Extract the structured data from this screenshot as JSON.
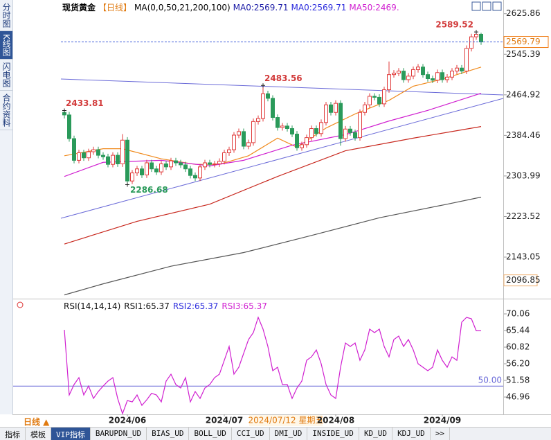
{
  "sidebar_tabs": [
    "分时图",
    "K线图",
    "闪电图",
    "合约资料"
  ],
  "header": {
    "instrument": "现货黄金",
    "period": "【日线】",
    "indicator": "MA(0,0,50,21,200,100)",
    "legend": [
      {
        "text": "MA0:2569.71",
        "color": "#1a1aa6"
      },
      {
        "text": "MA0:2569.71",
        "color": "#2b2bdd"
      },
      {
        "text": "MA50:2469.",
        "color": "#d01fd0"
      }
    ]
  },
  "chart_data": [
    {
      "type": "candlestick",
      "open": [
        2430,
        2425,
        2378,
        2335,
        2350,
        2340,
        2352,
        2356,
        2345,
        2342,
        2327,
        2345,
        2328,
        2375,
        2294,
        2310,
        2318,
        2306,
        2330,
        2318,
        2312,
        2328,
        2322,
        2334,
        2330,
        2326,
        2318,
        2305,
        2300,
        2322,
        2330,
        2327,
        2328,
        2333,
        2350,
        2356,
        2385,
        2392,
        2363,
        2370,
        2412,
        2418,
        2467,
        2458,
        2420,
        2400,
        2403,
        2398,
        2387,
        2360,
        2366,
        2380,
        2398,
        2388,
        2410,
        2445,
        2430,
        2448,
        2378,
        2397,
        2390,
        2380,
        2430,
        2445,
        2462,
        2460,
        2447,
        2475,
        2505,
        2508,
        2512,
        2495,
        2502,
        2515,
        2520,
        2505,
        2497,
        2494,
        2509,
        2495,
        2500,
        2512,
        2518,
        2512,
        2557,
        2580,
        2585
      ],
      "high": [
        2433.81,
        2431,
        2384,
        2356,
        2356,
        2358,
        2362,
        2362,
        2351,
        2348,
        2351,
        2351,
        2387,
        2381,
        2316,
        2324,
        2324,
        2336,
        2336,
        2324,
        2334,
        2334,
        2340,
        2340,
        2336,
        2332,
        2324,
        2311,
        2328,
        2336,
        2336,
        2334,
        2339,
        2356,
        2362,
        2391,
        2398,
        2398,
        2376,
        2418,
        2424,
        2483.56,
        2473,
        2464,
        2426,
        2409,
        2409,
        2404,
        2393,
        2372,
        2386,
        2404,
        2404,
        2416,
        2451,
        2451,
        2454,
        2454,
        2403,
        2403,
        2396,
        2436,
        2451,
        2468,
        2468,
        2466,
        2481,
        2531,
        2514,
        2518,
        2518,
        2508,
        2521,
        2526,
        2526,
        2511,
        2503,
        2515,
        2515,
        2506,
        2518,
        2524,
        2524,
        2563,
        2586,
        2589.52,
        2588
      ],
      "low": [
        2418,
        2372,
        2329,
        2329,
        2334,
        2334,
        2346,
        2339,
        2336,
        2321,
        2321,
        2322,
        2322,
        2286.68,
        2288,
        2304,
        2300,
        2300,
        2312,
        2306,
        2306,
        2316,
        2316,
        2324,
        2320,
        2312,
        2299,
        2294,
        2294,
        2316,
        2321,
        2321,
        2322,
        2327,
        2344,
        2350,
        2379,
        2357,
        2357,
        2364,
        2406,
        2412,
        2452,
        2414,
        2394,
        2394,
        2392,
        2381,
        2354,
        2354,
        2360,
        2374,
        2382,
        2382,
        2404,
        2424,
        2424,
        2364,
        2372,
        2384,
        2374,
        2374,
        2424,
        2439,
        2454,
        2441,
        2441,
        2469,
        2499,
        2502,
        2489,
        2489,
        2496,
        2509,
        2499,
        2491,
        2488,
        2488,
        2489,
        2489,
        2494,
        2506,
        2506,
        2506,
        2551,
        2574,
        2564
      ],
      "close": [
        2425,
        2378,
        2335,
        2350,
        2340,
        2352,
        2356,
        2345,
        2342,
        2327,
        2345,
        2328,
        2375,
        2294,
        2310,
        2318,
        2306,
        2330,
        2318,
        2312,
        2328,
        2322,
        2334,
        2330,
        2326,
        2318,
        2305,
        2300,
        2322,
        2330,
        2327,
        2328,
        2333,
        2350,
        2356,
        2385,
        2392,
        2363,
        2370,
        2412,
        2418,
        2467,
        2458,
        2420,
        2400,
        2403,
        2398,
        2387,
        2360,
        2366,
        2380,
        2398,
        2388,
        2410,
        2445,
        2430,
        2448,
        2378,
        2397,
        2390,
        2380,
        2430,
        2445,
        2462,
        2460,
        2447,
        2475,
        2505,
        2508,
        2512,
        2495,
        2502,
        2515,
        2520,
        2505,
        2497,
        2494,
        2509,
        2495,
        2500,
        2512,
        2518,
        2512,
        2557,
        2580,
        2585,
        2569.79
      ],
      "up_color": "#e03a3a",
      "down_color": "#2a9a5a",
      "lines": [
        {
          "color": "#f08a1c",
          "x": [
            0,
            8,
            12,
            20,
            27,
            32,
            38,
            44,
            48,
            54,
            60,
            67,
            72,
            78,
            86
          ],
          "values": [
            2344,
            2358,
            2358,
            2338,
            2327,
            2327,
            2344,
            2379,
            2361,
            2399,
            2427,
            2454,
            2482,
            2496,
            2520
          ]
        },
        {
          "color": "#d01fd0",
          "x": [
            0,
            8,
            20,
            30,
            37,
            47,
            58,
            67,
            75,
            86
          ],
          "values": [
            2303,
            2331,
            2335,
            2324,
            2335,
            2365,
            2386,
            2413,
            2434,
            2468
          ]
        },
        {
          "color": "#c8281e",
          "x": [
            0,
            15,
            30,
            44,
            58,
            72,
            86
          ],
          "values": [
            2169,
            2214,
            2248,
            2303,
            2354,
            2379,
            2402
          ]
        },
        {
          "color": "#555555",
          "x": [
            0,
            8,
            22,
            37,
            51,
            65,
            79,
            86
          ],
          "values": [
            2068,
            2090,
            2125,
            2152,
            2186,
            2221,
            2248,
            2262
          ]
        }
      ],
      "annotations": [
        {
          "value": 2433.81,
          "x": 0
        },
        {
          "value": 2286.68,
          "x": 13
        },
        {
          "value": 2483.56,
          "x": 41
        },
        {
          "value": 2589.52,
          "x": 85
        }
      ],
      "last_price": 2569.79,
      "range_low": 2096.85,
      "ylim": [
        2062,
        2642
      ],
      "yticks": [
        2625.86,
        2545.39,
        2464.92,
        2384.46,
        2303.99,
        2223.52,
        2143.05
      ],
      "xticks": [
        {
          "value": 13,
          "label": "2024/06"
        },
        {
          "value": 33,
          "label": "2024/07"
        },
        {
          "value": 56,
          "label": "2024/08"
        },
        {
          "value": 78,
          "label": "2024/09"
        }
      ]
    },
    {
      "type": "line",
      "legend": [
        {
          "text": "RSI(14,14,14)",
          "color": "#111111"
        },
        {
          "text": "RSI1:65.37",
          "color": "#111111"
        },
        {
          "text": "RSI2:65.37",
          "color": "#2b2bdd"
        },
        {
          "text": "RSI3:65.37",
          "color": "#d01fd0"
        }
      ],
      "series": [
        {
          "color": "#d01fd0",
          "values": [
            65.63,
            47.54,
            50.43,
            52.35,
            47.54,
            50.04,
            46.57,
            48.5,
            50.0,
            51.39,
            52.35,
            46.57,
            42.34,
            46.0,
            45.61,
            47.54,
            44.65,
            46.2,
            48.0,
            47.54,
            45.61,
            51.39,
            53.31,
            50.43,
            49.46,
            52.35,
            45.61,
            48.5,
            46.57,
            49.46,
            50.43,
            52.35,
            53.31,
            57.16,
            61.01,
            53.31,
            55.24,
            59.09,
            62.94,
            64.86,
            69.1,
            65.83,
            61.01,
            54.28,
            55.24,
            50.43,
            50.43,
            46.57,
            49.46,
            51.39,
            57.16,
            58.13,
            60.05,
            56.2,
            50.43,
            47.54,
            46.57,
            55.24,
            61.98,
            61.01,
            61.98,
            57.16,
            60.05,
            65.83,
            64.86,
            65.83,
            61.01,
            58.13,
            62.94,
            63.9,
            61.01,
            62.94,
            60.05,
            56.2,
            55.24,
            54.28,
            55.24,
            60.05,
            57.16,
            55.24,
            58.13,
            57.16,
            67.75,
            69.1,
            68.71,
            65.37,
            65.37
          ]
        }
      ],
      "reference": {
        "value": 50,
        "label": "50.00",
        "color": "#6a6ad8"
      },
      "ylim": [
        42.15,
        71.6
      ],
      "yticks": [
        70.06,
        65.44,
        60.82,
        {
          "value": 56.2,
          "label": "56.20"
        },
        51.58,
        46.96
      ]
    }
  ],
  "bottom_bar": {
    "period_button": "日线 ▲",
    "cursor_date": "2024/07/12 星期五"
  },
  "indicator_tabs": [
    "指标",
    "模板",
    "VIP指标",
    "BARUPDN_UD",
    "BIAS_UD",
    "BOLL_UD",
    "CCI_UD",
    "DMI_UD",
    "INSIDE_UD",
    "KD_UD",
    "KDJ_UD",
    ">>"
  ]
}
